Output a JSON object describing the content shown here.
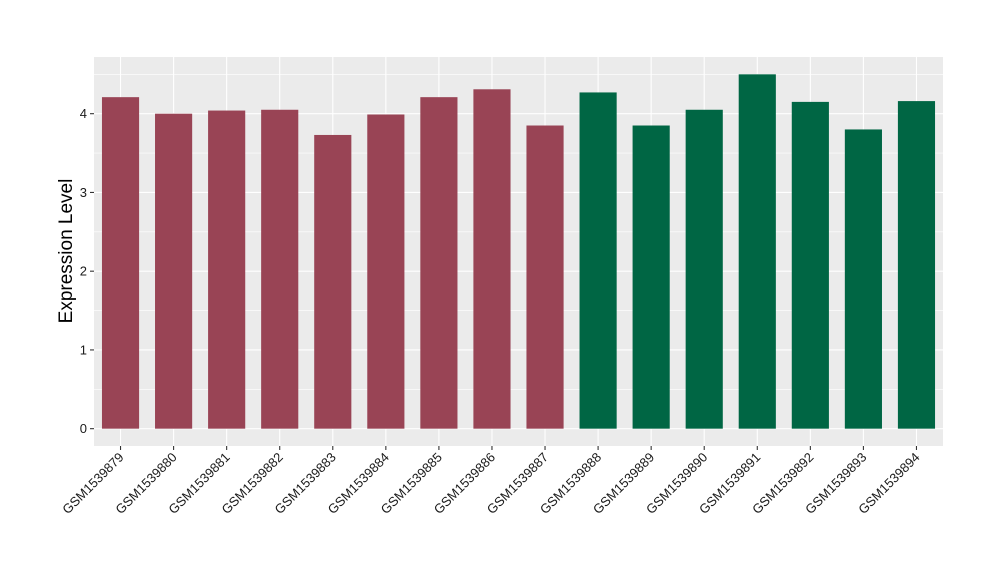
{
  "chart_data": {
    "type": "bar",
    "title": "",
    "xlabel": "",
    "ylabel": "Expression Level",
    "ylim": [
      -0.22,
      4.72
    ],
    "yticks": [
      0,
      1,
      2,
      3,
      4
    ],
    "grid": true,
    "panel_background": "#ebebeb",
    "grid_color": "#ffffff",
    "categories": [
      "GSM1539879",
      "GSM1539880",
      "GSM1539881",
      "GSM1539882",
      "GSM1539883",
      "GSM1539884",
      "GSM1539885",
      "GSM1539886",
      "GSM1539887",
      "GSM1539888",
      "GSM1539889",
      "GSM1539890",
      "GSM1539891",
      "GSM1539892",
      "GSM1539893",
      "GSM1539894"
    ],
    "values": [
      4.21,
      4.0,
      4.04,
      4.05,
      3.73,
      3.99,
      4.21,
      4.31,
      3.85,
      4.27,
      3.85,
      4.05,
      4.5,
      4.15,
      3.8,
      4.16
    ],
    "bar_colors": [
      "#994455",
      "#994455",
      "#994455",
      "#994455",
      "#994455",
      "#994455",
      "#994455",
      "#994455",
      "#994455",
      "#006644",
      "#006644",
      "#006644",
      "#006644",
      "#006644",
      "#006644",
      "#006644"
    ]
  }
}
